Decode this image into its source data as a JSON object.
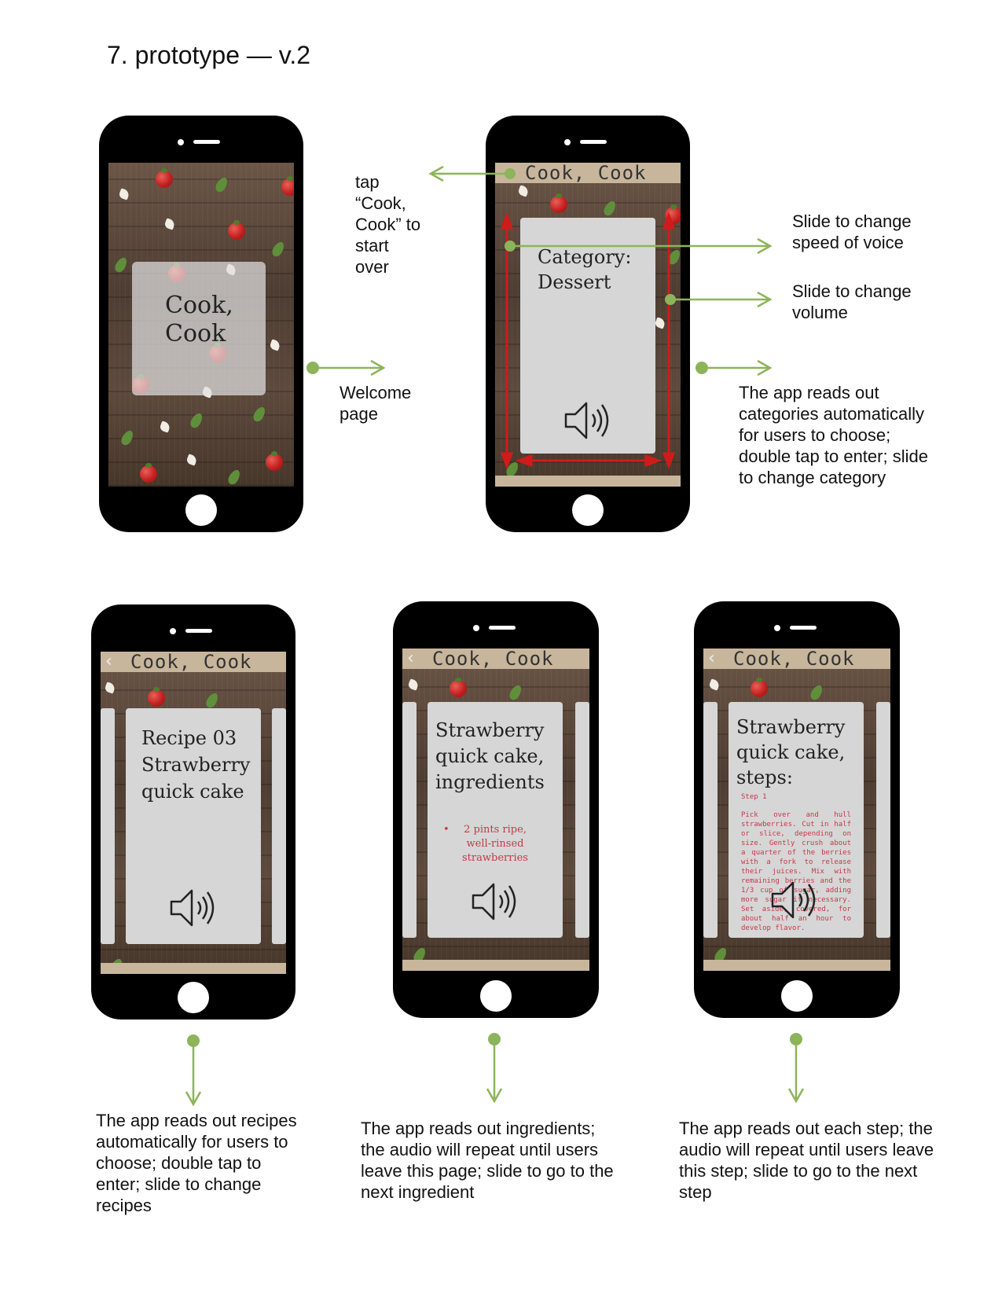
{
  "page": {
    "title": "7. prototype — v.2"
  },
  "colors": {
    "accent_green": "#8db45a",
    "gesture_red": "#d11b1b",
    "bar_beige": "#c8b69c",
    "card_gray": "#d6d6d6",
    "recipe_red": "#c23a4a"
  },
  "phones": {
    "welcome": {
      "title_line1": "Cook,",
      "title_line2": "Cook"
    },
    "category": {
      "app_title": "Cook, Cook",
      "card_line1": "Category:",
      "card_line2": "Dessert",
      "audio_icon": "speaker-icon"
    },
    "recipe": {
      "back_icon": "chevron-left-icon",
      "app_title": "Cook, Cook",
      "card_line1": "Recipe 03",
      "card_line2": "Strawberry",
      "card_line3": "quick cake",
      "audio_icon": "speaker-icon"
    },
    "ingredients": {
      "back_icon": "chevron-left-icon",
      "app_title": "Cook, Cook",
      "card_line1": "Strawberry",
      "card_line2": "quick cake,",
      "card_line3": "ingredients",
      "bullet": "•",
      "ingredient": "2 pints ripe, well-rinsed strawberries",
      "audio_icon": "speaker-icon"
    },
    "steps": {
      "back_icon": "chevron-left-icon",
      "app_title": "Cook, Cook",
      "card_line1": "Strawberry",
      "card_line2": "quick cake,",
      "card_line3": "steps:",
      "step_label": "Step 1",
      "step_text": "Pick over and hull strawberries. Cut in half or slice, depending on size. Gently crush about a quarter of the berries with a fork to release their juices. Mix with remaining berries and the 1/3 cup of sugar, adding more sugar if necessary. Set aside, covered, for about half an hour to develop flavor.",
      "audio_icon": "speaker-icon"
    }
  },
  "annotations": {
    "tap_start_over": "tap “Cook, Cook” to start over",
    "welcome_page": "Welcome page",
    "slide_speed": "Slide to change speed of voice",
    "slide_volume": "Slide to change volume",
    "categories_note": "The app reads out categories automatically for users to choose; double tap to enter; slide to change category",
    "recipes_note": "The app reads out recipes automatically for users to choose; double tap to enter; slide to change recipes",
    "ingredients_note": "The app reads out ingredients; the audio will repeat until users leave this page; slide to go to the next ingredient",
    "steps_note": "The app reads out each step; the audio will repeat until users leave this step; slide to go to the next step"
  }
}
